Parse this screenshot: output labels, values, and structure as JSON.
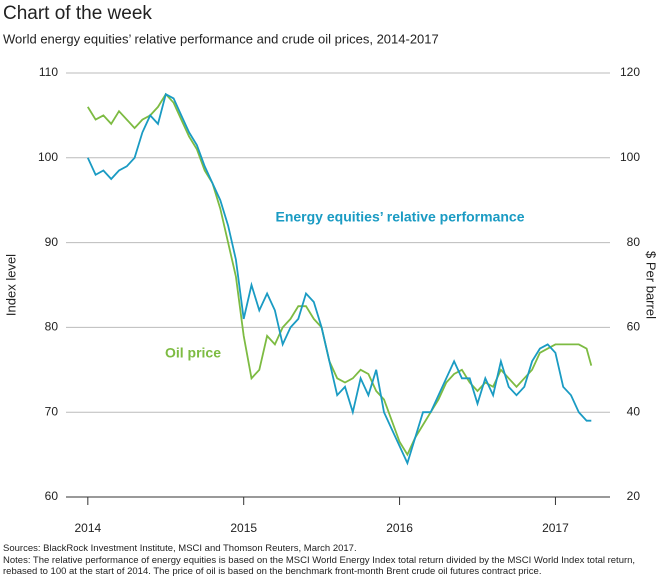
{
  "chart_data": {
    "type": "line",
    "title": "Chart of the week",
    "subtitle": "World energy equities’ relative performance and crude oil prices, 2014-2017",
    "ylabel": "Index level",
    "y2label": "$ Per barrel",
    "x": [
      2014.0,
      2014.05,
      2014.1,
      2014.15,
      2014.2,
      2014.25,
      2014.3,
      2014.35,
      2014.4,
      2014.45,
      2014.5,
      2014.55,
      2014.6,
      2014.65,
      2014.7,
      2014.75,
      2014.8,
      2014.85,
      2014.9,
      2014.95,
      2015.0,
      2015.05,
      2015.1,
      2015.15,
      2015.2,
      2015.25,
      2015.3,
      2015.35,
      2015.4,
      2015.45,
      2015.5,
      2015.55,
      2015.6,
      2015.65,
      2015.7,
      2015.75,
      2015.8,
      2015.85,
      2015.9,
      2015.95,
      2016.0,
      2016.05,
      2016.1,
      2016.15,
      2016.2,
      2016.25,
      2016.3,
      2016.35,
      2016.4,
      2016.45,
      2016.5,
      2016.55,
      2016.6,
      2016.65,
      2016.7,
      2016.75,
      2016.8,
      2016.85,
      2016.9,
      2016.95,
      2017.0,
      2017.05,
      2017.1,
      2017.15,
      2017.2,
      2017.23
    ],
    "series": [
      {
        "name": "Energy equities’ relative performance",
        "color": "#1a9bc3",
        "axis": "y",
        "values": [
          100,
          98,
          98.5,
          97.5,
          98.5,
          99,
          100,
          103,
          105,
          104,
          107.5,
          107,
          105,
          103,
          101.5,
          99,
          97,
          95,
          92,
          88,
          81,
          85,
          82,
          84,
          82,
          78,
          80,
          81,
          84,
          83,
          80,
          76,
          72,
          73,
          70,
          74,
          72,
          75,
          70,
          68,
          66,
          64,
          67,
          70,
          70,
          72,
          74,
          76,
          74,
          74,
          71,
          74,
          72,
          76,
          73,
          72,
          73,
          76,
          77.5,
          78,
          77,
          73,
          72,
          70,
          69,
          69
        ]
      },
      {
        "name": "Oil price",
        "color": "#7dbb42",
        "axis": "y2",
        "values": [
          112,
          109,
          110,
          108,
          111,
          109,
          107,
          109,
          110,
          112,
          115,
          113,
          109,
          105,
          102,
          97,
          94,
          88,
          80,
          72,
          58,
          48,
          50,
          58,
          56,
          60,
          62,
          65,
          65,
          62,
          60,
          52,
          48,
          47,
          48,
          50,
          49,
          45,
          43,
          38,
          33,
          30,
          34,
          37,
          40,
          43,
          47,
          49,
          50,
          47,
          45,
          47,
          46,
          50,
          48,
          46,
          48,
          50,
          54,
          55,
          56,
          56,
          56,
          56,
          55,
          51
        ]
      }
    ],
    "xlim": [
      2013.86,
      2017.35
    ],
    "xticks": [
      2014,
      2015,
      2016,
      2017
    ],
    "ylim": [
      60,
      110
    ],
    "yticks": [
      60,
      70,
      80,
      90,
      100,
      110
    ],
    "y2lim": [
      20,
      120
    ],
    "y2ticks": [
      20,
      40,
      60,
      80,
      100,
      120
    ],
    "grid": true,
    "sources": "Sources: BlackRock Investment Institute, MSCI and Thomson Reuters, March 2017.",
    "notes": "Notes: The relative performance of energy equities is based on the MSCI World Energy Index total return divided by the MSCI World Index total return, rebased to 100 at the start of 2014. The price of oil is based on the benchmark front-month Brent crude oil futures contract price."
  }
}
